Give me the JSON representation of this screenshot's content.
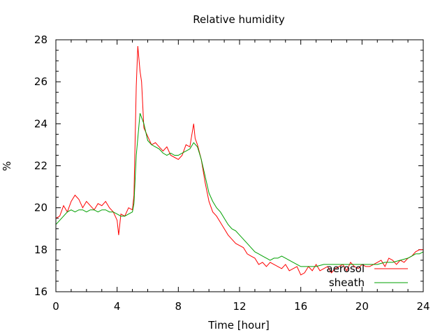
{
  "chart_data": {
    "type": "line",
    "title": "Relative humidity",
    "xlabel": "Time [hour]",
    "ylabel": "%",
    "xlim": [
      0,
      24
    ],
    "ylim": [
      16,
      28
    ],
    "xticks": [
      0,
      4,
      8,
      12,
      16,
      20,
      24
    ],
    "yticks": [
      16,
      18,
      20,
      22,
      24,
      26,
      28
    ],
    "xtick_labels": [
      "0",
      "4",
      "8",
      "12",
      "16",
      "20",
      "24"
    ],
    "ytick_labels": [
      "16",
      "18",
      "20",
      "22",
      "24",
      "26",
      "28"
    ],
    "grid": false,
    "legend_position": "bottom-right",
    "series": [
      {
        "name": "aerosol",
        "color": "#ff0000",
        "x": [
          0,
          0.25,
          0.5,
          0.75,
          1,
          1.25,
          1.5,
          1.75,
          2,
          2.25,
          2.5,
          2.75,
          3,
          3.25,
          3.5,
          3.75,
          4,
          4.1,
          4.25,
          4.5,
          4.75,
          5,
          5.1,
          5.25,
          5.35,
          5.5,
          5.6,
          5.75,
          6,
          6.25,
          6.5,
          6.75,
          7,
          7.25,
          7.5,
          7.75,
          8,
          8.25,
          8.5,
          8.75,
          9,
          9.1,
          9.25,
          9.5,
          9.75,
          10,
          10.25,
          10.5,
          10.75,
          11,
          11.25,
          11.5,
          11.75,
          12,
          12.25,
          12.5,
          12.75,
          13,
          13.25,
          13.5,
          13.75,
          14,
          14.25,
          14.5,
          14.75,
          15,
          15.25,
          15.5,
          15.75,
          16,
          16.25,
          16.5,
          16.75,
          17,
          17.25,
          17.5,
          17.75,
          18,
          18.25,
          18.5,
          18.75,
          19,
          19.25,
          19.5,
          19.75,
          20,
          20.25,
          20.5,
          20.75,
          21,
          21.25,
          21.5,
          21.75,
          22,
          22.25,
          22.5,
          22.75,
          23,
          23.25,
          23.5,
          23.75,
          24
        ],
        "y": [
          19.5,
          19.6,
          20.1,
          19.8,
          20.3,
          20.6,
          20.4,
          20.0,
          20.3,
          20.1,
          19.9,
          20.2,
          20.1,
          20.3,
          20.0,
          19.8,
          19.4,
          18.7,
          19.7,
          19.6,
          20.0,
          19.9,
          20.6,
          25.8,
          27.7,
          26.5,
          26.0,
          23.8,
          23.4,
          23.0,
          23.1,
          22.9,
          22.7,
          22.9,
          22.5,
          22.4,
          22.3,
          22.5,
          23.0,
          22.9,
          24.0,
          23.3,
          23.0,
          22.3,
          21.2,
          20.3,
          19.8,
          19.6,
          19.3,
          19.0,
          18.7,
          18.5,
          18.3,
          18.2,
          18.1,
          17.8,
          17.7,
          17.6,
          17.3,
          17.4,
          17.2,
          17.4,
          17.3,
          17.2,
          17.1,
          17.3,
          17.0,
          17.1,
          17.2,
          16.8,
          16.9,
          17.2,
          17.0,
          17.3,
          17.0,
          17.1,
          17.2,
          16.9,
          17.1,
          17.2,
          17.3,
          17.0,
          17.4,
          17.2,
          17.1,
          17.3,
          17.2,
          17.2,
          17.3,
          17.4,
          17.5,
          17.2,
          17.6,
          17.5,
          17.3,
          17.5,
          17.4,
          17.6,
          17.7,
          17.9,
          18.0,
          18.0
        ]
      },
      {
        "name": "sheath",
        "color": "#00a000",
        "x": [
          0,
          0.25,
          0.5,
          0.75,
          1,
          1.25,
          1.5,
          1.75,
          2,
          2.25,
          2.5,
          2.75,
          3,
          3.25,
          3.5,
          3.75,
          4,
          4.25,
          4.5,
          4.75,
          5,
          5.1,
          5.25,
          5.5,
          5.75,
          6,
          6.25,
          6.5,
          6.75,
          7,
          7.25,
          7.5,
          7.75,
          8,
          8.25,
          8.5,
          8.75,
          9,
          9.25,
          9.5,
          9.75,
          10,
          10.25,
          10.5,
          10.75,
          11,
          11.25,
          11.5,
          11.75,
          12,
          12.25,
          12.5,
          12.75,
          13,
          13.25,
          13.5,
          13.75,
          14,
          14.25,
          14.5,
          14.75,
          15,
          15.25,
          15.5,
          15.75,
          16,
          16.5,
          17,
          17.5,
          18,
          18.5,
          19,
          19.5,
          20,
          20.5,
          21,
          21.5,
          22,
          22.5,
          23,
          23.25,
          23.5,
          23.75,
          24
        ],
        "y": [
          19.2,
          19.4,
          19.6,
          19.8,
          19.9,
          19.8,
          19.9,
          19.9,
          19.8,
          19.9,
          19.9,
          19.8,
          19.9,
          19.9,
          19.8,
          19.8,
          19.7,
          19.6,
          19.6,
          19.7,
          19.8,
          20.2,
          22.5,
          24.5,
          24.0,
          23.2,
          23.0,
          22.9,
          22.8,
          22.6,
          22.5,
          22.6,
          22.5,
          22.5,
          22.6,
          22.7,
          22.8,
          23.1,
          22.9,
          22.3,
          21.5,
          20.7,
          20.3,
          20.0,
          19.8,
          19.5,
          19.2,
          19.0,
          18.9,
          18.7,
          18.5,
          18.3,
          18.1,
          17.9,
          17.8,
          17.7,
          17.6,
          17.5,
          17.6,
          17.6,
          17.7,
          17.6,
          17.5,
          17.4,
          17.3,
          17.2,
          17.2,
          17.2,
          17.3,
          17.3,
          17.3,
          17.3,
          17.3,
          17.3,
          17.3,
          17.3,
          17.4,
          17.4,
          17.5,
          17.6,
          17.7,
          17.8,
          17.8,
          17.9
        ]
      }
    ]
  }
}
